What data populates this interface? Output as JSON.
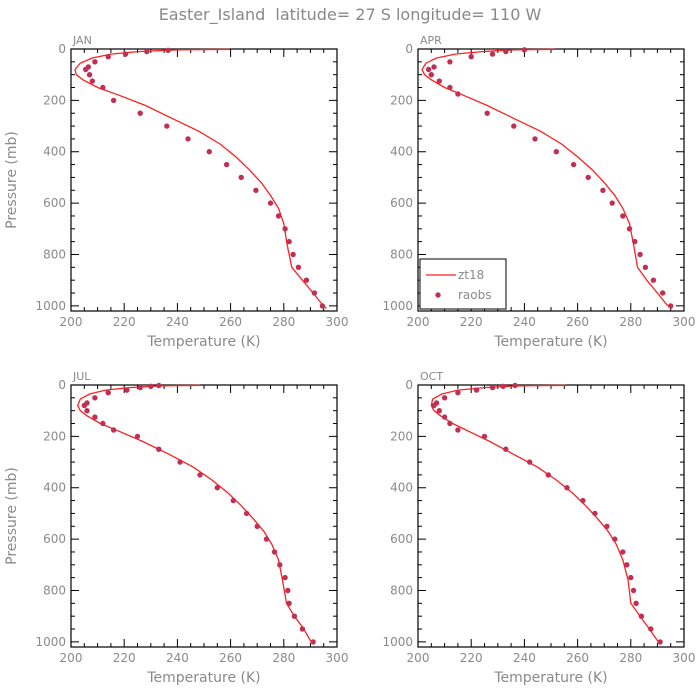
{
  "figure": {
    "title": "Easter_Island  latitude= 27 S longitude= 110 W"
  },
  "colors": {
    "model_line": "#ff2020",
    "raobs_marker": "#c03055",
    "frame": "#000000",
    "text": "#8a8a8a"
  },
  "chart_data": [
    {
      "type": "line",
      "panel": "JAN",
      "xlabel": "Temperature (K)",
      "ylabel": "Pressure (mb)",
      "xlim": [
        200,
        300
      ],
      "ylim": [
        1020,
        0
      ],
      "xticks": [
        200,
        220,
        240,
        260,
        280,
        300
      ],
      "yticks": [
        0,
        200,
        400,
        600,
        800,
        1000
      ],
      "grid": false,
      "legend": null,
      "series": [
        {
          "name": "zt18",
          "style": "line",
          "x": [
            259.5,
            240,
            225,
            215,
            208,
            203.5,
            201.5,
            202,
            204.5,
            210,
            218,
            228,
            238,
            248,
            256,
            262,
            267,
            271.5,
            275,
            278,
            280,
            281.2,
            283,
            287,
            291,
            294.5,
            296
          ],
          "y": [
            1,
            3,
            10,
            20,
            35,
            55,
            80,
            100,
            120,
            150,
            180,
            220,
            270,
            320,
            370,
            420,
            470,
            520,
            570,
            620,
            680,
            760,
            850,
            900,
            950,
            995,
            1010
          ]
        },
        {
          "name": "raobs",
          "style": "marker",
          "x": [
            236.5,
            228.5,
            220.5,
            214,
            209,
            206.5,
            205.5,
            207,
            208,
            212,
            216,
            226,
            236,
            244,
            252,
            258.5,
            264,
            269.5,
            275,
            278,
            280.5,
            282,
            283.5,
            285.5,
            288.5,
            291.5,
            294.5
          ],
          "y": [
            5,
            10,
            20,
            30,
            50,
            70,
            80,
            100,
            125,
            150,
            200,
            250,
            300,
            350,
            400,
            450,
            500,
            550,
            600,
            650,
            700,
            750,
            800,
            850,
            900,
            950,
            1000
          ]
        }
      ]
    },
    {
      "type": "line",
      "panel": "APR",
      "xlabel": "Temperature (K)",
      "ylabel": "",
      "xlim": [
        200,
        300
      ],
      "ylim": [
        1020,
        0
      ],
      "xticks": [
        200,
        220,
        240,
        260,
        280,
        300
      ],
      "yticks": [
        0,
        200,
        400,
        600,
        800,
        1000
      ],
      "grid": false,
      "legend": "bottom-left",
      "series": [
        {
          "name": "zt18",
          "style": "line",
          "x": [
            251.5,
            236,
            224,
            214,
            207,
            203,
            201.5,
            202.5,
            205,
            210,
            217,
            226,
            236,
            246,
            254,
            260,
            265.5,
            270,
            274,
            277,
            279.5,
            281,
            282.5,
            286,
            290,
            293.5,
            295.5
          ],
          "y": [
            1,
            3,
            10,
            20,
            35,
            55,
            80,
            100,
            120,
            150,
            180,
            220,
            270,
            320,
            370,
            420,
            470,
            520,
            570,
            620,
            680,
            760,
            850,
            900,
            950,
            995,
            1010
          ]
        },
        {
          "name": "raobs",
          "style": "marker",
          "x": [
            240,
            233,
            228,
            220,
            212,
            206,
            204,
            205,
            208,
            212,
            215,
            226,
            236,
            244,
            252,
            258.5,
            264,
            269.5,
            273,
            277,
            279.5,
            281.5,
            283.5,
            285.5,
            288.5,
            292,
            295
          ],
          "y": [
            3,
            10,
            20,
            30,
            50,
            70,
            80,
            100,
            125,
            150,
            175,
            250,
            300,
            350,
            400,
            450,
            500,
            550,
            600,
            650,
            700,
            750,
            800,
            850,
            900,
            950,
            1000
          ]
        }
      ]
    },
    {
      "type": "line",
      "panel": "JUL",
      "xlabel": "Temperature (K)",
      "ylabel": "Pressure (mb)",
      "xlim": [
        200,
        300
      ],
      "ylim": [
        1020,
        0
      ],
      "xticks": [
        200,
        220,
        240,
        260,
        280,
        300
      ],
      "yticks": [
        0,
        200,
        400,
        600,
        800,
        1000
      ],
      "grid": false,
      "legend": null,
      "series": [
        {
          "name": "zt18",
          "style": "line",
          "x": [
            248.5,
            234,
            222,
            213,
            207,
            203.5,
            202.5,
            203.5,
            206,
            211,
            218,
            227,
            237,
            246,
            253,
            259,
            264,
            268.5,
            272.5,
            275.5,
            278,
            279.5,
            281,
            284,
            287.5,
            290,
            291.5
          ],
          "y": [
            1,
            3,
            10,
            20,
            35,
            55,
            80,
            100,
            120,
            150,
            180,
            220,
            270,
            320,
            370,
            420,
            470,
            520,
            570,
            620,
            680,
            760,
            850,
            900,
            950,
            995,
            1010
          ]
        },
        {
          "name": "raobs",
          "style": "marker",
          "x": [
            233,
            230,
            226,
            221,
            214,
            209,
            206,
            205,
            206,
            209,
            212,
            216,
            225,
            233,
            241,
            248.5,
            255,
            261,
            266,
            270,
            273.5,
            276.5,
            278.5,
            280.5,
            281.5,
            282,
            284,
            287,
            291
          ],
          "y": [
            2,
            5,
            10,
            20,
            30,
            50,
            70,
            80,
            100,
            125,
            150,
            175,
            200,
            250,
            300,
            350,
            400,
            450,
            500,
            550,
            600,
            650,
            700,
            750,
            800,
            850,
            900,
            950,
            1000
          ]
        }
      ]
    },
    {
      "type": "line",
      "panel": "OCT",
      "xlabel": "Temperature (K)",
      "ylabel": "",
      "xlim": [
        200,
        300
      ],
      "ylim": [
        1020,
        0
      ],
      "xticks": [
        200,
        220,
        240,
        260,
        280,
        300
      ],
      "yticks": [
        0,
        200,
        400,
        600,
        800,
        1000
      ],
      "grid": false,
      "legend": null,
      "series": [
        {
          "name": "zt18",
          "style": "line",
          "x": [
            255.5,
            238,
            225,
            215,
            209,
            205.5,
            205,
            206,
            208.5,
            213,
            219,
            227,
            236,
            245,
            252,
            258,
            263,
            267.5,
            271.5,
            274.5,
            277,
            279,
            280,
            283.5,
            287,
            290,
            291.5
          ],
          "y": [
            1,
            3,
            10,
            20,
            35,
            55,
            80,
            100,
            120,
            150,
            180,
            220,
            270,
            320,
            370,
            420,
            470,
            520,
            570,
            620,
            680,
            760,
            850,
            900,
            950,
            995,
            1010
          ]
        },
        {
          "name": "raobs",
          "style": "marker",
          "x": [
            236.5,
            232,
            228,
            222,
            215,
            210,
            207,
            206,
            208,
            210,
            212,
            215,
            225,
            233,
            242,
            249,
            256,
            262,
            266.5,
            271,
            274,
            277,
            278.5,
            280,
            281,
            282,
            284,
            287.5,
            291
          ],
          "y": [
            2,
            5,
            10,
            20,
            30,
            50,
            70,
            80,
            100,
            125,
            150,
            175,
            200,
            250,
            300,
            350,
            400,
            450,
            500,
            550,
            600,
            650,
            700,
            750,
            800,
            850,
            900,
            950,
            1000
          ]
        }
      ]
    }
  ]
}
